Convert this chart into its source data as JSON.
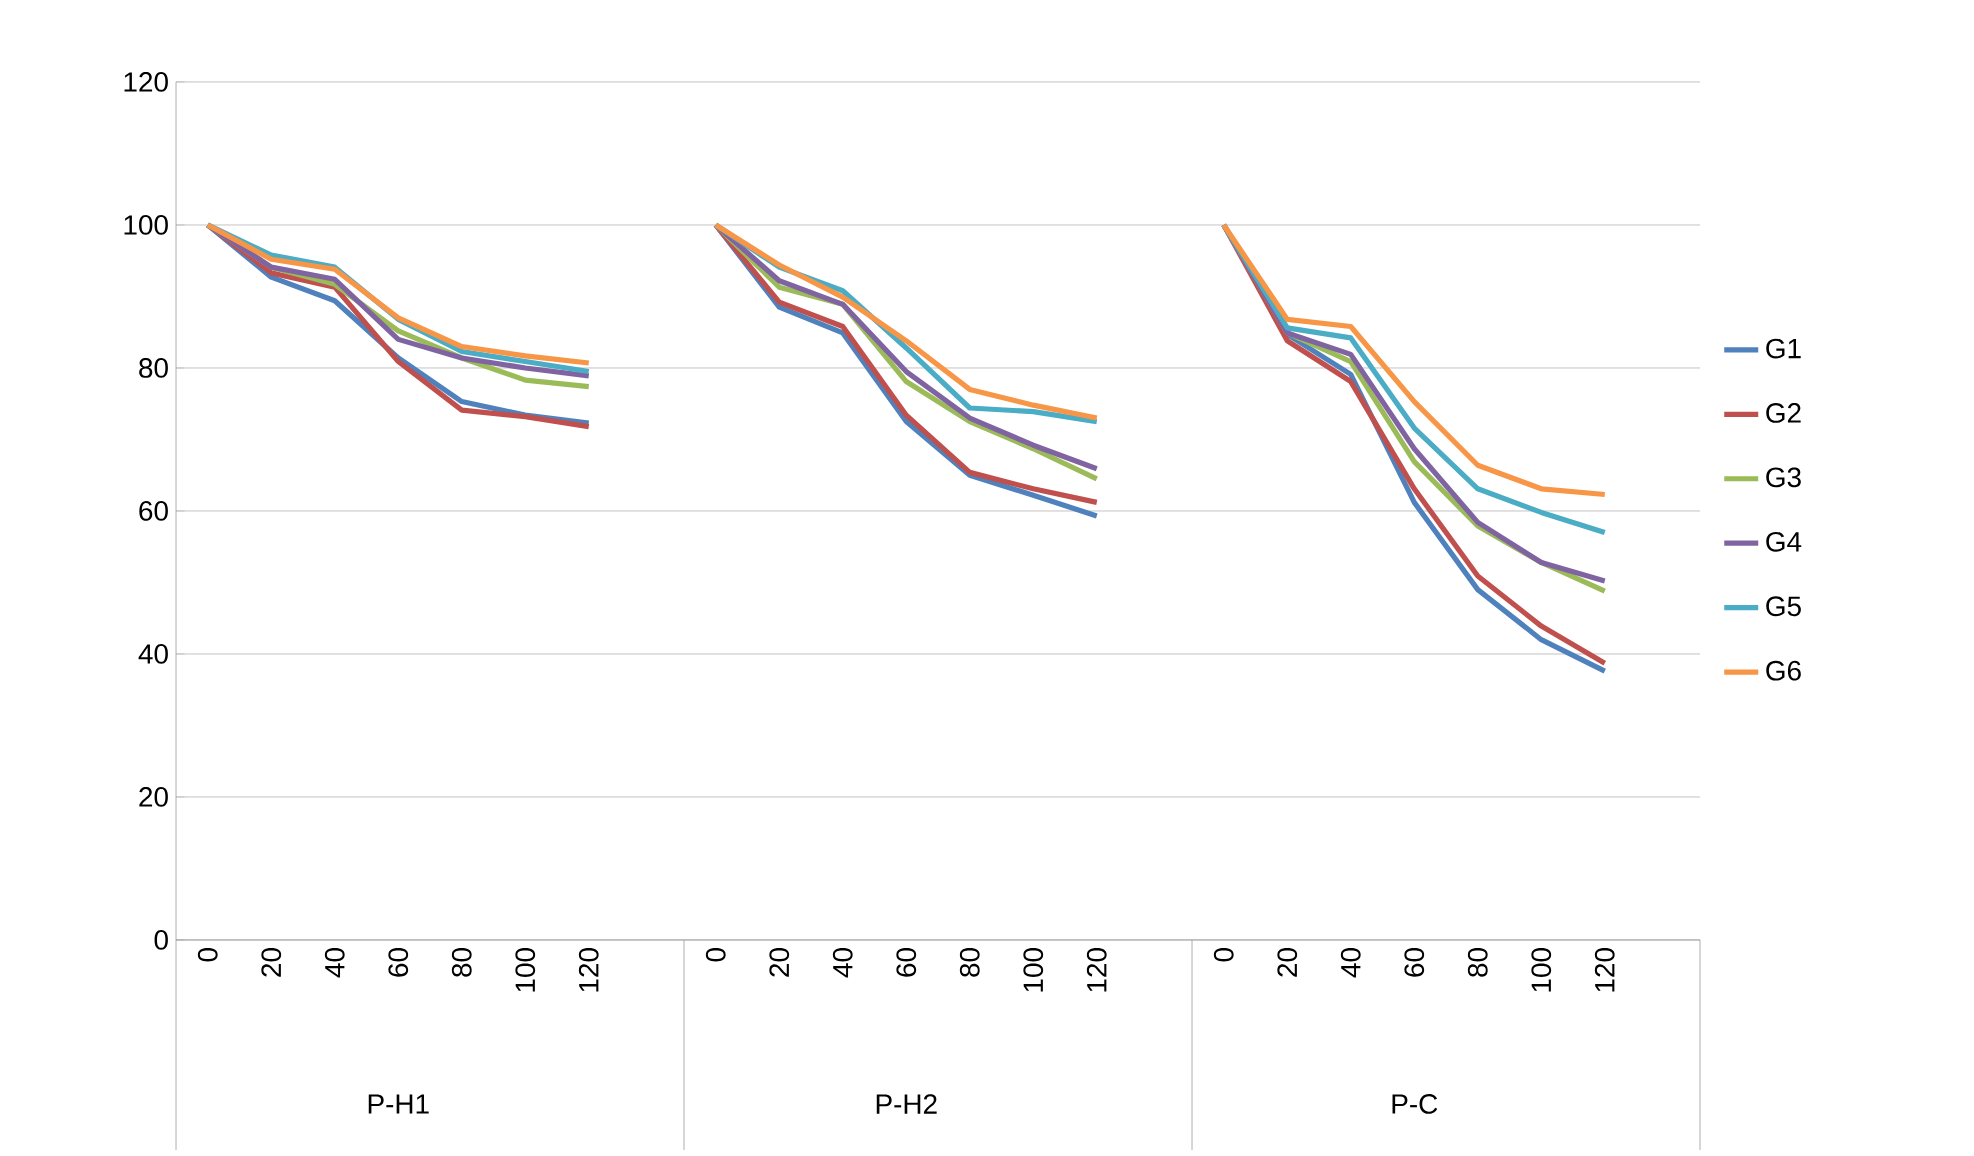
{
  "chart_data": {
    "type": "line",
    "categories": [
      "0",
      "20",
      "40",
      "60",
      "80",
      "100",
      "120",
      null,
      "0",
      "20",
      "40",
      "60",
      "80",
      "100",
      "120",
      null,
      "0",
      "20",
      "40",
      "60",
      "80",
      "100",
      "120",
      null
    ],
    "annotations": [
      "P-H1",
      "P-H2",
      "P-C"
    ],
    "series": [
      {
        "name": "G1",
        "color": "#4f81bd",
        "values": [
          100,
          92.7,
          89.4,
          81.4,
          75.3,
          73.4,
          72.3,
          null,
          100,
          88.5,
          84.9,
          72.5,
          65.0,
          62.2,
          59.3,
          null,
          100,
          84.7,
          79.1,
          61.2,
          49.0,
          42.0,
          37.6,
          null
        ]
      },
      {
        "name": "G2",
        "color": "#c0504d",
        "values": [
          100,
          93.3,
          91.3,
          80.9,
          74.1,
          73.2,
          71.8,
          null,
          100,
          89.2,
          85.8,
          73.4,
          65.4,
          63.1,
          61.2,
          null,
          100,
          83.8,
          78.1,
          63.1,
          50.9,
          43.9,
          38.7,
          null
        ]
      },
      {
        "name": "G3",
        "color": "#9bbb59",
        "values": [
          100,
          94.1,
          91.7,
          85.2,
          81.4,
          78.3,
          77.4,
          null,
          100,
          91.3,
          88.9,
          78.1,
          72.5,
          68.7,
          64.5,
          null,
          100,
          84.9,
          80.9,
          66.9,
          57.9,
          52.8,
          48.8,
          null
        ]
      },
      {
        "name": "G4",
        "color": "#8064a2",
        "values": [
          100,
          94.1,
          92.4,
          84.0,
          81.4,
          80.0,
          78.9,
          null,
          100,
          92.2,
          88.9,
          79.5,
          73.0,
          69.2,
          65.9,
          null,
          100,
          84.9,
          81.9,
          68.7,
          58.4,
          52.8,
          50.2,
          null
        ]
      },
      {
        "name": "G5",
        "color": "#4bacc6",
        "values": [
          100,
          95.8,
          94.1,
          86.8,
          82.3,
          80.9,
          79.5,
          null,
          100,
          94.1,
          90.8,
          82.8,
          74.4,
          73.9,
          72.5,
          null,
          100,
          85.6,
          84.2,
          71.6,
          63.1,
          59.8,
          57.0,
          null
        ]
      },
      {
        "name": "G6",
        "color": "#f79646",
        "values": [
          100,
          95.2,
          93.8,
          87.0,
          83.0,
          81.7,
          80.7,
          null,
          100,
          94.4,
          89.9,
          83.8,
          77.0,
          74.8,
          73.0,
          null,
          100,
          86.8,
          85.8,
          75.3,
          66.4,
          63.1,
          62.3,
          null
        ]
      }
    ],
    "ylim": [
      0,
      120
    ],
    "yticks": [
      0,
      20,
      40,
      60,
      80,
      100,
      120
    ],
    "grid": "y",
    "legend": "right",
    "marker": "none",
    "line_style": "solid"
  }
}
